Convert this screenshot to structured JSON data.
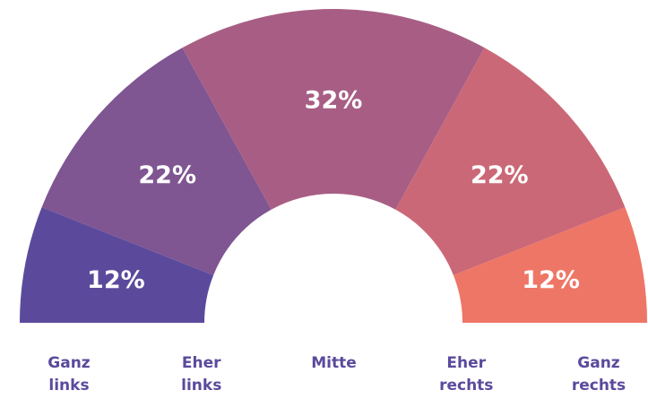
{
  "chart_data": {
    "type": "semi-donut",
    "categories": [
      "Ganz links",
      "Eher links",
      "Mitte",
      "Eher rechts",
      "Ganz rechts"
    ],
    "values": [
      12,
      22,
      32,
      22,
      12
    ],
    "value_labels": [
      "12%",
      "22%",
      "32%",
      "22%",
      "12%"
    ],
    "colors": [
      "#5b4a9c",
      "#7f5592",
      "#a85e84",
      "#cb6877",
      "#ee7666"
    ]
  }
}
